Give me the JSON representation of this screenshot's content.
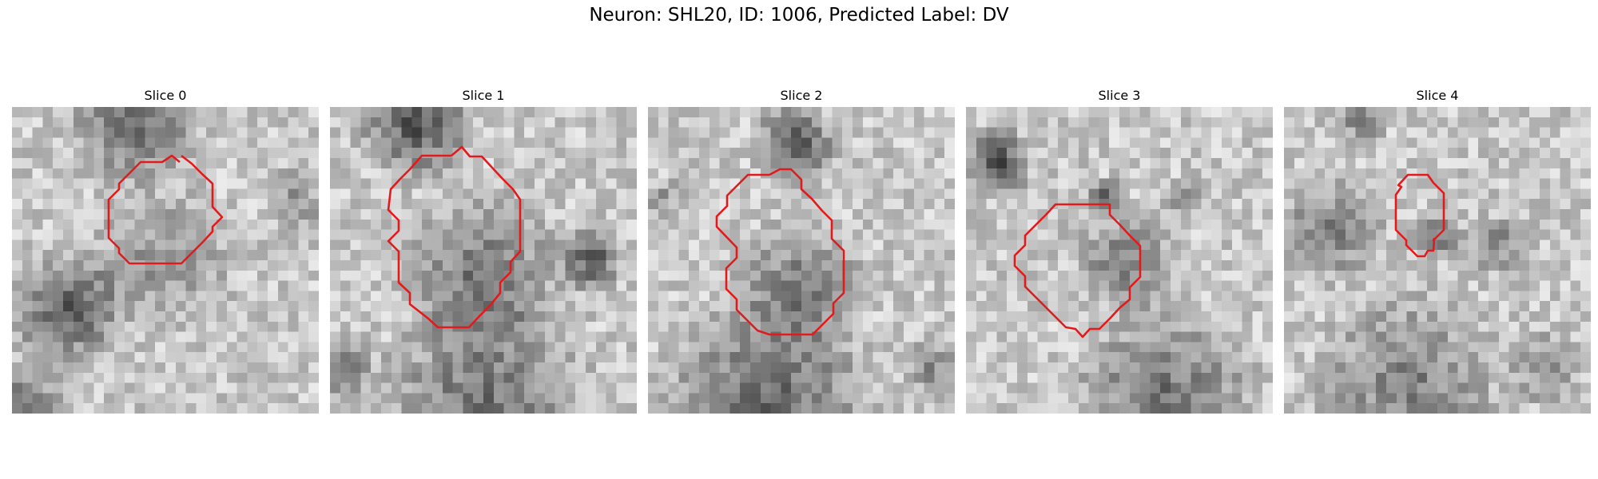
{
  "figure": {
    "title": "Neuron: SHL20, ID: 1006, Predicted Label: DV"
  },
  "colors": {
    "background": "#ffffff",
    "contour": "#e31a1c"
  },
  "panels": [
    {
      "title": "Slice 0",
      "seed": 11,
      "blobs": [
        [
          0.5,
          0.5,
          0.28,
          0.25
        ],
        [
          0.18,
          0.66,
          0.22,
          0.55
        ],
        [
          0.4,
          0.05,
          0.25,
          0.45
        ],
        [
          0.93,
          0.3,
          0.12,
          0.25
        ],
        [
          0.05,
          0.95,
          0.15,
          0.35
        ]
      ]
    },
    {
      "title": "Slice 1",
      "seed": 23,
      "blobs": [
        [
          0.5,
          0.55,
          0.3,
          0.4
        ],
        [
          0.28,
          0.05,
          0.22,
          0.55
        ],
        [
          0.85,
          0.5,
          0.12,
          0.55
        ],
        [
          0.5,
          0.97,
          0.4,
          0.4
        ],
        [
          0.05,
          0.85,
          0.12,
          0.35
        ]
      ]
    },
    {
      "title": "Slice 2",
      "seed": 37,
      "blobs": [
        [
          0.5,
          0.58,
          0.25,
          0.35
        ],
        [
          0.48,
          0.12,
          0.15,
          0.6
        ],
        [
          0.4,
          0.96,
          0.4,
          0.45
        ],
        [
          0.05,
          0.3,
          0.08,
          0.25
        ],
        [
          0.93,
          0.85,
          0.12,
          0.3
        ]
      ]
    },
    {
      "title": "Slice 3",
      "seed": 51,
      "blobs": [
        [
          0.52,
          0.5,
          0.2,
          0.35
        ],
        [
          0.1,
          0.18,
          0.13,
          0.6
        ],
        [
          0.45,
          0.3,
          0.08,
          0.45
        ],
        [
          0.65,
          0.95,
          0.35,
          0.4
        ],
        [
          0.7,
          0.3,
          0.08,
          0.3
        ]
      ]
    },
    {
      "title": "Slice 4",
      "seed": 67,
      "blobs": [
        [
          0.15,
          0.4,
          0.2,
          0.35
        ],
        [
          0.5,
          0.42,
          0.1,
          0.4
        ],
        [
          0.7,
          0.45,
          0.12,
          0.3
        ],
        [
          0.4,
          0.9,
          0.35,
          0.35
        ],
        [
          0.85,
          0.85,
          0.15,
          0.3
        ],
        [
          0.25,
          0.05,
          0.1,
          0.3
        ]
      ]
    }
  ]
}
